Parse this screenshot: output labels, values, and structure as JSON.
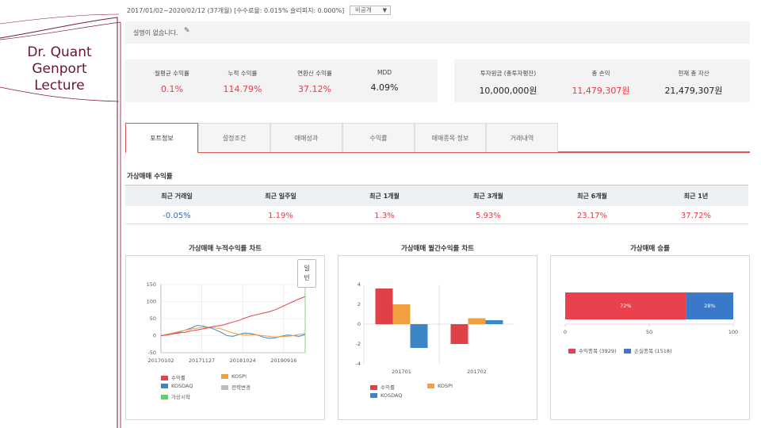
{
  "lecture": {
    "title_lines": [
      "Dr. Quant",
      "Genport",
      "Lecture"
    ]
  },
  "header": {
    "period_text": "2017/01/02~2020/02/12 (37개월) [수수료율: 0.015% 슬리피지: 0.000%]",
    "visibility_select": "비공개",
    "description": "설명이 없습니다."
  },
  "summary_left": [
    {
      "label": "월평균 수익률",
      "value": "0.1%"
    },
    {
      "label": "누적 수익률",
      "value": "114.79%"
    },
    {
      "label": "연환산 수익률",
      "value": "37.12%"
    },
    {
      "label": "MDD",
      "value": "4.09%"
    }
  ],
  "summary_right": [
    {
      "label": "투자원금 (총투자평잔)",
      "value": "10,000,000원"
    },
    {
      "label": "총 손익",
      "value": "11,479,307원"
    },
    {
      "label": "현재 총 자산",
      "value": "21,479,307원"
    }
  ],
  "tabs": [
    "포트정보",
    "설정조건",
    "매매성과",
    "수익률",
    "매매종목 정보",
    "거래내역"
  ],
  "simulation": {
    "title": "가상매매 수익률",
    "headers": [
      "최근 거래일",
      "최근 일주일",
      "최근 1개월",
      "최근 3개월",
      "최근 6개월",
      "최근 1년"
    ],
    "values": [
      "-0.05%",
      "1.19%",
      "1.3%",
      "5.93%",
      "23.17%",
      "37.72%"
    ]
  },
  "panels": {
    "cumulative_title": "가상매매 누적수익률 차트",
    "monthly_title": "가상매매 월간수익률 차트",
    "winrate_title": "가상매매 승률",
    "toggle_label_1": "일",
    "toggle_label_2": "빈"
  },
  "chart_data": [
    {
      "type": "line",
      "title": "가상매매 누적수익률 차트",
      "x_ticks": [
        "20170102",
        "20171127",
        "20181024",
        "20190916"
      ],
      "y_ticks": [
        150,
        100,
        50,
        0,
        -50
      ],
      "ylim": [
        -50,
        150
      ],
      "legend": [
        "수익률",
        "KOSPI",
        "KOSDAQ",
        "전략변경",
        "가상시작"
      ],
      "series": [
        {
          "name": "수익률",
          "color": "#e8414d",
          "values": [
            0,
            2,
            5,
            8,
            10,
            14,
            17,
            20,
            24,
            28,
            30,
            35,
            40,
            45,
            52,
            58,
            62,
            66,
            70,
            76,
            84,
            92,
            100,
            108,
            114.8
          ]
        },
        {
          "name": "KOSPI",
          "color": "#f0a040",
          "values": [
            0,
            4,
            8,
            12,
            16,
            19,
            22,
            24,
            25,
            23,
            20,
            14,
            8,
            4,
            2,
            3,
            2,
            0,
            -2,
            -4,
            -3,
            -2,
            0,
            4,
            6
          ]
        },
        {
          "name": "KOSDAQ",
          "color": "#3d86c6",
          "values": [
            0,
            3,
            6,
            10,
            16,
            22,
            30,
            28,
            24,
            18,
            10,
            0,
            -2,
            4,
            8,
            6,
            2,
            -4,
            -8,
            -6,
            -2,
            2,
            0,
            -2,
            4
          ]
        }
      ]
    },
    {
      "type": "bar",
      "title": "가상매매 월간수익률 차트",
      "categories": [
        "201701",
        "201702"
      ],
      "y_ticks": [
        4,
        2,
        0,
        -2,
        -4
      ],
      "ylim": [
        -4,
        4
      ],
      "legend": [
        "수익률",
        "KOSPI",
        "KOSDAQ"
      ],
      "series": [
        {
          "name": "수익률",
          "color": "#e04048",
          "values": [
            3.6,
            -2.0
          ]
        },
        {
          "name": "KOSPI",
          "color": "#f0a040",
          "values": [
            2.0,
            0.6
          ]
        },
        {
          "name": "KOSDAQ",
          "color": "#3d86c6",
          "values": [
            -2.4,
            0.4
          ]
        }
      ]
    },
    {
      "type": "bar",
      "title": "가상매매 승률",
      "orientation": "horizontal-stacked",
      "x_ticks": [
        0,
        50,
        100
      ],
      "xlim": [
        0,
        100
      ],
      "series": [
        {
          "name": "수익종목 (3929)",
          "color": "#e8414d",
          "value": 72,
          "label": "72%"
        },
        {
          "name": "손실종목 (1518)",
          "color": "#3a78c9",
          "value": 28,
          "label": "28%"
        }
      ]
    }
  ]
}
